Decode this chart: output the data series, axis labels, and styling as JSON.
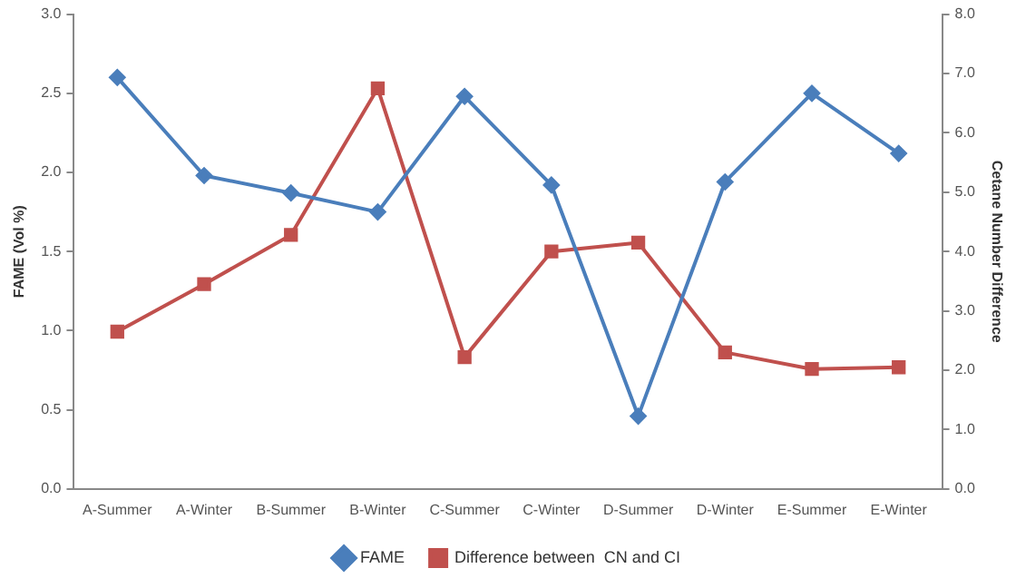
{
  "chart_data": {
    "type": "line",
    "categories": [
      "A-Summer",
      "A-Winter",
      "B-Summer",
      "B-Winter",
      "C-Summer",
      "C-Winter",
      "D-Summer",
      "D-Winter",
      "E-Summer",
      "E-Winter"
    ],
    "ylabel": "FAME (Vol %)",
    "y2label": "Cetane Number Difference",
    "series": [
      {
        "name": "FAME",
        "color": "#4a7ebb",
        "marker": "diamond",
        "values": [
          2.6,
          1.98,
          1.87,
          1.75,
          2.48,
          1.92,
          0.46,
          1.94,
          2.5,
          2.12
        ]
      },
      {
        "name": "Difference between  CN and CI",
        "color": "#c0504d",
        "marker": "square",
        "axis": "y2",
        "values": [
          2.65,
          3.45,
          4.28,
          6.75,
          2.22,
          4.0,
          4.15,
          2.3,
          2.02,
          2.05
        ]
      }
    ],
    "ylim": [
      0,
      3
    ],
    "yticks": [
      {
        "value": 0,
        "label": "0.0"
      },
      {
        "value": 0.5,
        "label": "0.5"
      },
      {
        "value": 1,
        "label": "1.0"
      },
      {
        "value": 1.5,
        "label": "1.5"
      },
      {
        "value": 2,
        "label": "2.0"
      },
      {
        "value": 2.5,
        "label": "2.5"
      },
      {
        "value": 3,
        "label": "3.0"
      }
    ],
    "y2lim": [
      0,
      8
    ],
    "y2ticks": [
      {
        "value": 0,
        "label": "0.0"
      },
      {
        "value": 1,
        "label": "1.0"
      },
      {
        "value": 2,
        "label": "2.0"
      },
      {
        "value": 3,
        "label": "3.0"
      },
      {
        "value": 4,
        "label": "4.0"
      },
      {
        "value": 5,
        "label": "5.0"
      },
      {
        "value": 6,
        "label": "6.0"
      },
      {
        "value": 7,
        "label": "7.0"
      },
      {
        "value": 8,
        "label": "8.0"
      }
    ],
    "grid": false,
    "legend": "bottom"
  }
}
